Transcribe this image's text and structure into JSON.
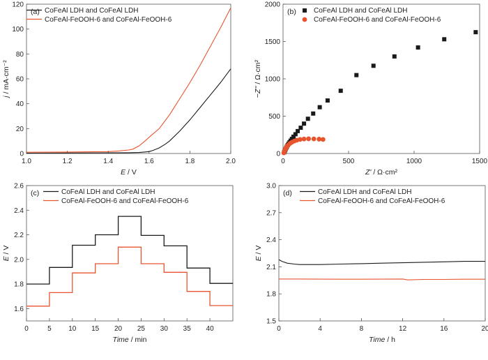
{
  "colors": {
    "black": "#1a1a1a",
    "orange": "#e8542d",
    "axis": "#555555"
  },
  "chart_data": [
    {
      "panel_label": "(a)",
      "type": "line",
      "xlabel_var": "E",
      "xlabel_unit": " / V",
      "ylabel_var": "j",
      "ylabel_unit": " / mA·cm⁻²",
      "xlim": [
        1.0,
        2.0
      ],
      "ylim": [
        0,
        120
      ],
      "xticks": [
        1.0,
        1.2,
        1.4,
        1.6,
        1.8,
        2.0
      ],
      "xtick_labels": [
        "1.0",
        "1.2",
        "1.4",
        "1.6",
        "1.8",
        "2.0"
      ],
      "yticks": [
        0,
        20,
        40,
        60,
        80,
        100,
        120
      ],
      "ytick_labels": [
        "0",
        "20",
        "40",
        "60",
        "80",
        "100",
        "120"
      ],
      "legend_position": "top-left",
      "series": [
        {
          "name": "CoFeAl LDH and CoFeAl LDH",
          "color": "black",
          "style": "line",
          "x": [
            1.0,
            1.2,
            1.4,
            1.5,
            1.55,
            1.6,
            1.62,
            1.65,
            1.68,
            1.7,
            1.75,
            1.8,
            1.85,
            1.9,
            1.95,
            2.0
          ],
          "y": [
            0.3,
            0.4,
            0.5,
            0.6,
            0.8,
            1.5,
            2.5,
            4.5,
            7.5,
            10,
            18,
            27,
            37,
            47,
            57,
            68
          ]
        },
        {
          "name": "CoFeAl-FeOOH-6 and CoFeAl-FeOOH-6",
          "color": "orange",
          "style": "line",
          "x": [
            1.0,
            1.2,
            1.4,
            1.45,
            1.5,
            1.52,
            1.55,
            1.58,
            1.6,
            1.65,
            1.7,
            1.75,
            1.8,
            1.85,
            1.9,
            1.95,
            2.0
          ],
          "y": [
            1.0,
            1.2,
            1.5,
            2.0,
            2.8,
            3.5,
            6,
            10,
            13,
            20,
            31,
            44,
            57,
            71,
            86,
            101,
            117
          ]
        }
      ]
    },
    {
      "panel_label": "(b)",
      "type": "scatter",
      "xlabel_var": "Z'",
      "xlabel_unit": " / Ω·cm²",
      "ylabel_var": "−Z''",
      "ylabel_unit": " / Ω·cm²",
      "xlim": [
        0,
        1500
      ],
      "ylim": [
        0,
        2000
      ],
      "xticks": [
        0,
        500,
        1000,
        1500
      ],
      "xtick_labels": [
        "0",
        "500",
        "1000",
        "1500"
      ],
      "yticks": [
        0,
        500,
        1000,
        1500,
        2000
      ],
      "ytick_labels": [
        "0",
        "500",
        "1000",
        "1500",
        "2000"
      ],
      "legend_position": "top-left",
      "series": [
        {
          "name": "CoFeAl LDH and CoFeAl LDH",
          "color": "black",
          "marker": "square",
          "x": [
            8,
            12,
            16,
            20,
            25,
            30,
            36,
            42,
            50,
            58,
            68,
            80,
            95,
            112,
            135,
            160,
            190,
            230,
            280,
            340,
            440,
            560,
            690,
            850,
            1030,
            1230,
            1470
          ],
          "y": [
            15,
            30,
            45,
            60,
            78,
            95,
            112,
            130,
            150,
            172,
            196,
            225,
            258,
            300,
            345,
            400,
            465,
            535,
            620,
            710,
            840,
            1050,
            1175,
            1300,
            1420,
            1530,
            1625
          ]
        },
        {
          "name": "CoFeAl-FeOOH-6 and CoFeAl-FeOOH-6",
          "color": "orange",
          "marker": "circle",
          "x": [
            6,
            9,
            12,
            16,
            20,
            26,
            33,
            42,
            54,
            68,
            85,
            105,
            130,
            160,
            195,
            235,
            275,
            305
          ],
          "y": [
            8,
            20,
            34,
            50,
            66,
            84,
            100,
            118,
            136,
            152,
            166,
            178,
            188,
            194,
            197,
            195,
            192,
            188
          ]
        }
      ]
    },
    {
      "panel_label": "(c)",
      "type": "line",
      "xlabel_var": "Time",
      "xlabel_unit": " / min",
      "ylabel_var": "E",
      "ylabel_unit": " / V",
      "xlim": [
        0,
        45
      ],
      "ylim": [
        1.5,
        2.6
      ],
      "xticks": [
        0,
        5,
        10,
        15,
        20,
        25,
        30,
        35,
        40
      ],
      "xtick_labels": [
        "0",
        "5",
        "10",
        "15",
        "20",
        "25",
        "30",
        "35",
        "40"
      ],
      "yticks": [
        1.6,
        1.8,
        2.0,
        2.2,
        2.4,
        2.6
      ],
      "ytick_labels": [
        "1.6",
        "1.8",
        "2.0",
        "2.2",
        "2.4",
        "2.6"
      ],
      "legend_position": "top-left",
      "series": [
        {
          "name": "CoFeAl LDH and CoFeAl LDH",
          "color": "black",
          "style": "step",
          "step_edges": [
            0,
            5,
            10,
            15,
            20,
            25,
            30,
            35,
            40,
            45
          ],
          "step_values": [
            1.8,
            1.935,
            2.115,
            2.2,
            2.35,
            2.195,
            2.11,
            1.93,
            1.805
          ]
        },
        {
          "name": "CoFeAl-FeOOH-6 and CoFeAl-FeOOH-6",
          "color": "orange",
          "style": "step",
          "step_edges": [
            0,
            5,
            10,
            15,
            20,
            25,
            30,
            35,
            40,
            45
          ],
          "step_values": [
            1.62,
            1.73,
            1.89,
            1.965,
            2.1,
            1.965,
            1.895,
            1.74,
            1.625
          ]
        }
      ]
    },
    {
      "panel_label": "(d)",
      "type": "line",
      "xlabel_var": "Time",
      "xlabel_unit": " / h",
      "ylabel_var": "E",
      "ylabel_unit": " / V",
      "xlim": [
        0,
        20
      ],
      "ylim": [
        1.5,
        3.0
      ],
      "xticks": [
        0,
        4,
        8,
        12,
        16,
        20
      ],
      "xtick_labels": [
        "0",
        "4",
        "8",
        "12",
        "16",
        "20"
      ],
      "yticks": [
        1.5,
        1.8,
        2.1,
        2.4,
        2.7,
        3.0
      ],
      "ytick_labels": [
        "1.5",
        "1.8",
        "2.1",
        "2.4",
        "2.7",
        "3.0"
      ],
      "legend_position": "top-left",
      "series": [
        {
          "name": "CoFeAl LDH and CoFeAl LDH",
          "color": "black",
          "style": "line",
          "x": [
            0,
            0.3,
            0.8,
            1.5,
            2,
            4,
            6,
            8,
            10,
            12,
            14,
            16,
            18,
            20
          ],
          "y": [
            2.18,
            2.16,
            2.14,
            2.13,
            2.125,
            2.125,
            2.13,
            2.135,
            2.14,
            2.145,
            2.15,
            2.155,
            2.16,
            2.16
          ]
        },
        {
          "name": "CoFeAl-FeOOH-6 and CoFeAl-FeOOH-6",
          "color": "orange",
          "style": "line",
          "x": [
            0,
            2,
            4,
            6,
            8,
            10,
            12,
            12.5,
            14,
            16,
            18,
            20
          ],
          "y": [
            1.965,
            1.965,
            1.963,
            1.962,
            1.962,
            1.963,
            1.965,
            1.955,
            1.96,
            1.96,
            1.962,
            1.962
          ]
        }
      ]
    }
  ]
}
